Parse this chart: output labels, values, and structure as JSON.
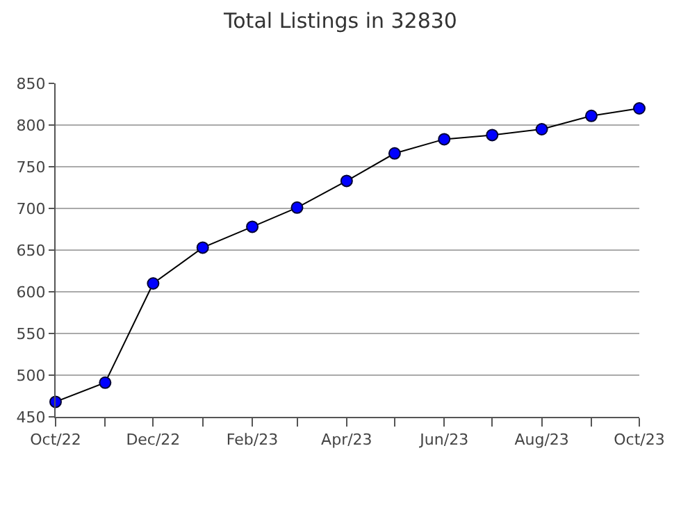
{
  "chart_data": {
    "type": "line",
    "title": "Total Listings in 32830",
    "x": [
      "2022-10",
      "2022-11",
      "2022-12",
      "2023-01",
      "2023-02",
      "2023-03",
      "2023-04",
      "2023-05",
      "2023-06",
      "2023-07",
      "2023-08",
      "2023-09",
      "2023-10"
    ],
    "series": [
      {
        "color": "#0000ff",
        "values": [
          468,
          491,
          610,
          653,
          678,
          701,
          733,
          766,
          783,
          788,
          795,
          811,
          820
        ]
      }
    ],
    "xlim": [
      "2022-10",
      "2023-10"
    ],
    "xticks": [
      {
        "value": "2022-10",
        "label": "Oct/22"
      },
      {
        "value": "2022-11",
        "label": null
      },
      {
        "value": "2022-12",
        "label": "Dec/22"
      },
      {
        "value": "2023-01",
        "label": null
      },
      {
        "value": "2023-02",
        "label": "Feb/23"
      },
      {
        "value": "2023-03",
        "label": null
      },
      {
        "value": "2023-04",
        "label": "Apr/23"
      },
      {
        "value": "2023-05",
        "label": null
      },
      {
        "value": "2023-06",
        "label": "Jun/23"
      },
      {
        "value": "2023-07",
        "label": null
      },
      {
        "value": "2023-08",
        "label": "Aug/23"
      },
      {
        "value": "2023-09",
        "label": null
      },
      {
        "value": "2023-10",
        "label": "Oct/23"
      }
    ],
    "ylim": [
      450,
      850
    ],
    "yticks": [
      450,
      500,
      550,
      600,
      650,
      700,
      750,
      800,
      850
    ],
    "grid": "y",
    "marker": "circle",
    "line_style": "solid"
  }
}
